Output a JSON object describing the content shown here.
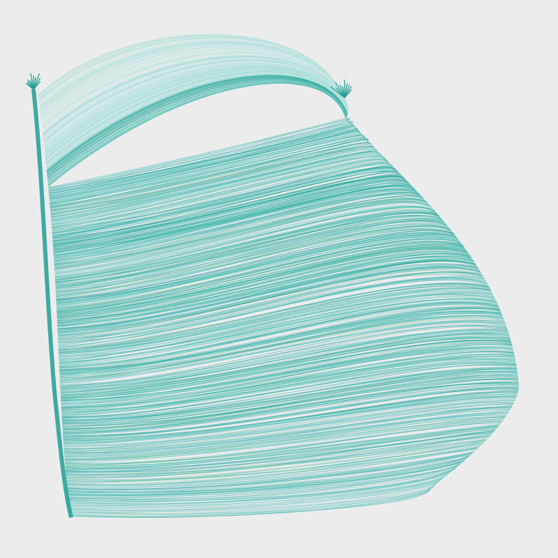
{
  "artwork": {
    "subject": "flowing-ribbon-strands",
    "colors": {
      "background": "#ececec",
      "primary": "#2bb3a8",
      "deep": "#1f9f95",
      "light": "#9fdcd6",
      "faint": "#d6ebe9",
      "accent_green": "#8cc4a0",
      "accent_blue": "#7fc6e0"
    },
    "strand_count": 900
  }
}
